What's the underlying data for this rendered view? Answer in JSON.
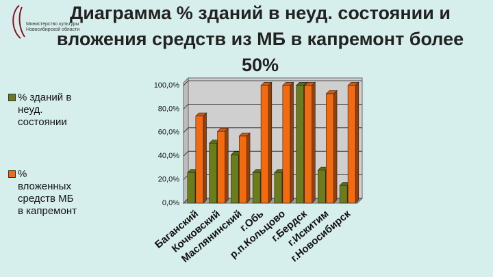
{
  "logo_text": "Министерство культуры Новосибирской области",
  "chart_data": {
    "type": "bar3d",
    "title": "Диаграмма % зданий в неуд. состоянии и вложения средств из МБ в капремонт более 50%",
    "categories": [
      "Баганский",
      "Кочковский",
      "Маслянинский",
      "г.Обь",
      "р.п.Кольцово",
      "г.Бердск",
      "г.Искитим",
      "г.Новосибирск"
    ],
    "series": [
      {
        "name": "% зданий в неуд. состоянии",
        "color": "#6b7d1a",
        "values": [
          26,
          51,
          41,
          26,
          26,
          100,
          28,
          15
        ]
      },
      {
        "name": "% вложенных средств МБ в капремонт",
        "color": "#f56a0f",
        "values": [
          74,
          61,
          57,
          100,
          100,
          100,
          93,
          100
        ]
      }
    ],
    "ylim": [
      0,
      100
    ],
    "yticks": [
      {
        "value": 0,
        "label": "0,0%"
      },
      {
        "value": 20,
        "label": "20,0%"
      },
      {
        "value": 40,
        "label": "40,0%"
      },
      {
        "value": 60,
        "label": "60,0%"
      },
      {
        "value": 80,
        "label": "80,0%"
      },
      {
        "value": 100,
        "label": "100,0%"
      }
    ],
    "grid": true,
    "legend": "left"
  }
}
